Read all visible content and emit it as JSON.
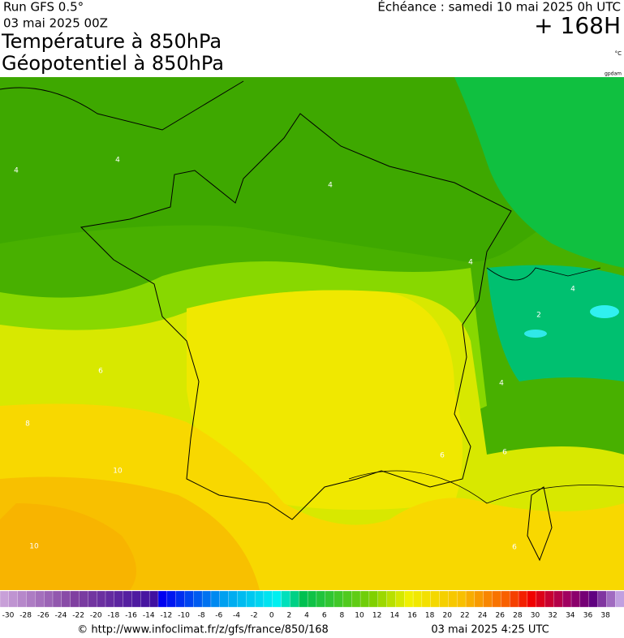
{
  "header": {
    "run": "Run GFS 0.5°",
    "run_date": "03 mai 2025 00Z",
    "echeance": "Échéance : samedi 10 mai 2025 0h UTC",
    "offset": "+ 168H",
    "title1": "Température à 850hPa",
    "title2": "Géopotentiel à 850hPa",
    "unit": "°C",
    "source_tag": "gpdam"
  },
  "map": {
    "contour_labels": [
      4,
      4,
      4,
      4,
      4,
      2,
      4,
      6,
      8,
      10,
      10,
      6,
      6,
      6
    ]
  },
  "scale": {
    "labels": [
      -30,
      -28,
      -26,
      -24,
      -22,
      -20,
      -18,
      -16,
      -14,
      -12,
      -10,
      -8,
      -6,
      -4,
      -2,
      0,
      2,
      4,
      6,
      8,
      10,
      12,
      14,
      16,
      18,
      20,
      22,
      24,
      26,
      28,
      30,
      32,
      34,
      36,
      38
    ]
  },
  "footer": {
    "url": "© http://www.infoclimat.fr/z/gfs/france/850/168",
    "generated": "03 mai 2025  4:25 UTC"
  }
}
